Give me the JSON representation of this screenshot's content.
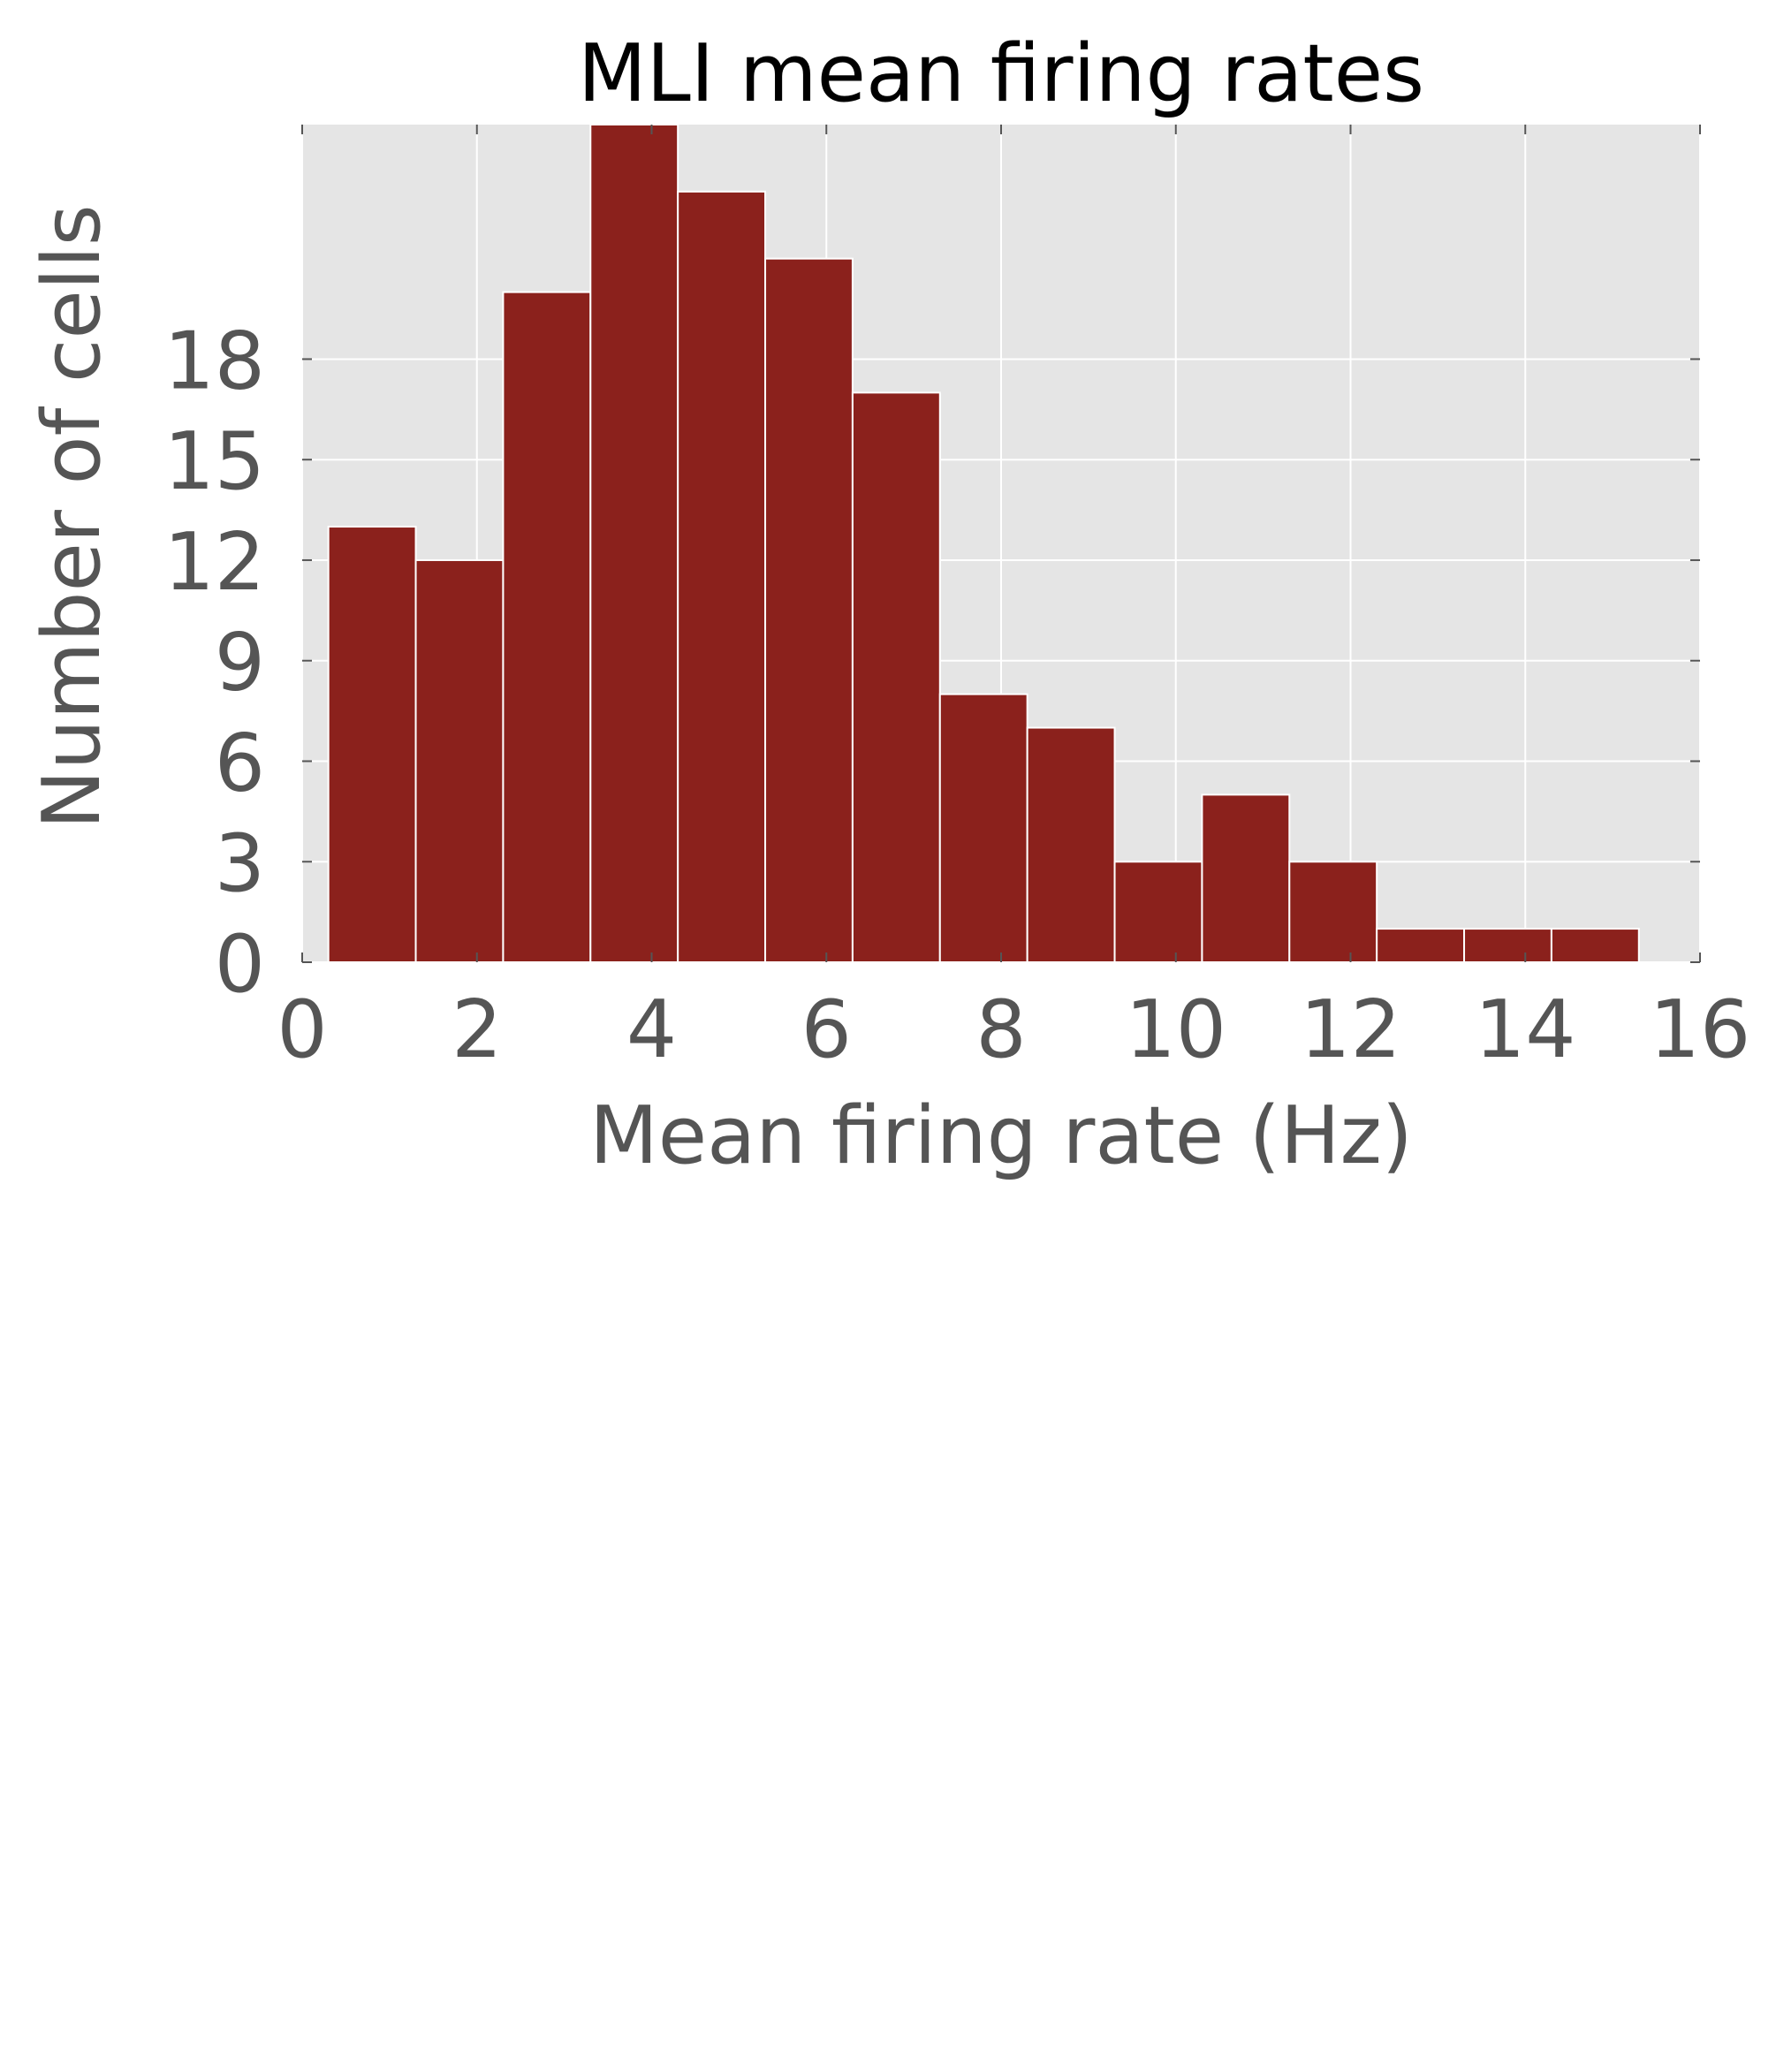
{
  "chart_data": {
    "type": "bar",
    "title": "MLI mean firing rates",
    "xlabel": "Mean firing rate (Hz)",
    "ylabel": "Number of cells",
    "bins": [
      {
        "x0": 0.3,
        "x1": 1.3,
        "count": 13
      },
      {
        "x0": 1.3,
        "x1": 2.3,
        "count": 12
      },
      {
        "x0": 2.3,
        "x1": 3.3,
        "count": 20
      },
      {
        "x0": 3.3,
        "x1": 4.3,
        "count": 25
      },
      {
        "x0": 4.3,
        "x1": 5.3,
        "count": 23
      },
      {
        "x0": 5.3,
        "x1": 6.3,
        "count": 21
      },
      {
        "x0": 6.3,
        "x1": 7.3,
        "count": 17
      },
      {
        "x0": 7.3,
        "x1": 8.3,
        "count": 8
      },
      {
        "x0": 8.3,
        "x1": 9.3,
        "count": 7
      },
      {
        "x0": 9.3,
        "x1": 10.3,
        "count": 3
      },
      {
        "x0": 10.3,
        "x1": 11.3,
        "count": 5
      },
      {
        "x0": 11.3,
        "x1": 12.3,
        "count": 3
      },
      {
        "x0": 12.3,
        "x1": 13.3,
        "count": 1
      },
      {
        "x0": 13.3,
        "x1": 14.3,
        "count": 1
      },
      {
        "x0": 14.3,
        "x1": 15.3,
        "count": 1
      }
    ],
    "xlim": [
      0,
      16
    ],
    "ylim": [
      0,
      25
    ],
    "xticks": [
      "0",
      "2",
      "4",
      "6",
      "8",
      "10",
      "12",
      "14",
      "16"
    ],
    "yticks": [
      "0",
      "3",
      "6",
      "9",
      "12",
      "15",
      "18"
    ],
    "grid": true,
    "colors": {
      "bar": "#8b211c",
      "bar_edge": "#ffffff",
      "plot_background": "#e5e5e5",
      "grid": "#ffffff",
      "tick_text": "#555555",
      "title_text": "#000000"
    }
  }
}
